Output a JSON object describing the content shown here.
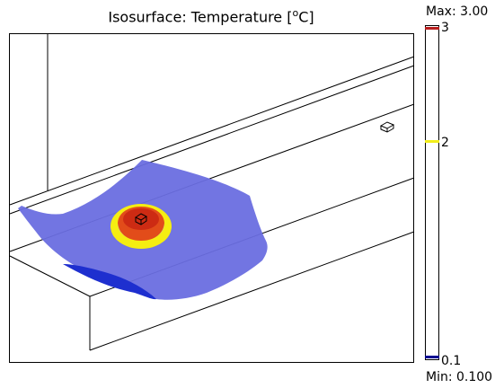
{
  "title": {
    "prefix": "Isosurface: Temperature [",
    "degree": "o",
    "unit": "C]"
  },
  "legend": {
    "max_label": "Max: 3.00",
    "min_label": "Min: 0.100",
    "ticks": [
      {
        "label": "3",
        "value": 3.0,
        "color": "#b81e1e"
      },
      {
        "label": "2",
        "value": 2.0,
        "color": "#f2ee1a"
      },
      {
        "label": "0.1",
        "value": 0.1,
        "color": "#000090"
      }
    ]
  },
  "colors": {
    "iso_blue": "#6a6ee0",
    "iso_blue_shadow": "#1e2fcf",
    "iso_yellow": "#f5ee12",
    "iso_orange": "#e24c1a",
    "iso_red": "#c21a10"
  }
}
